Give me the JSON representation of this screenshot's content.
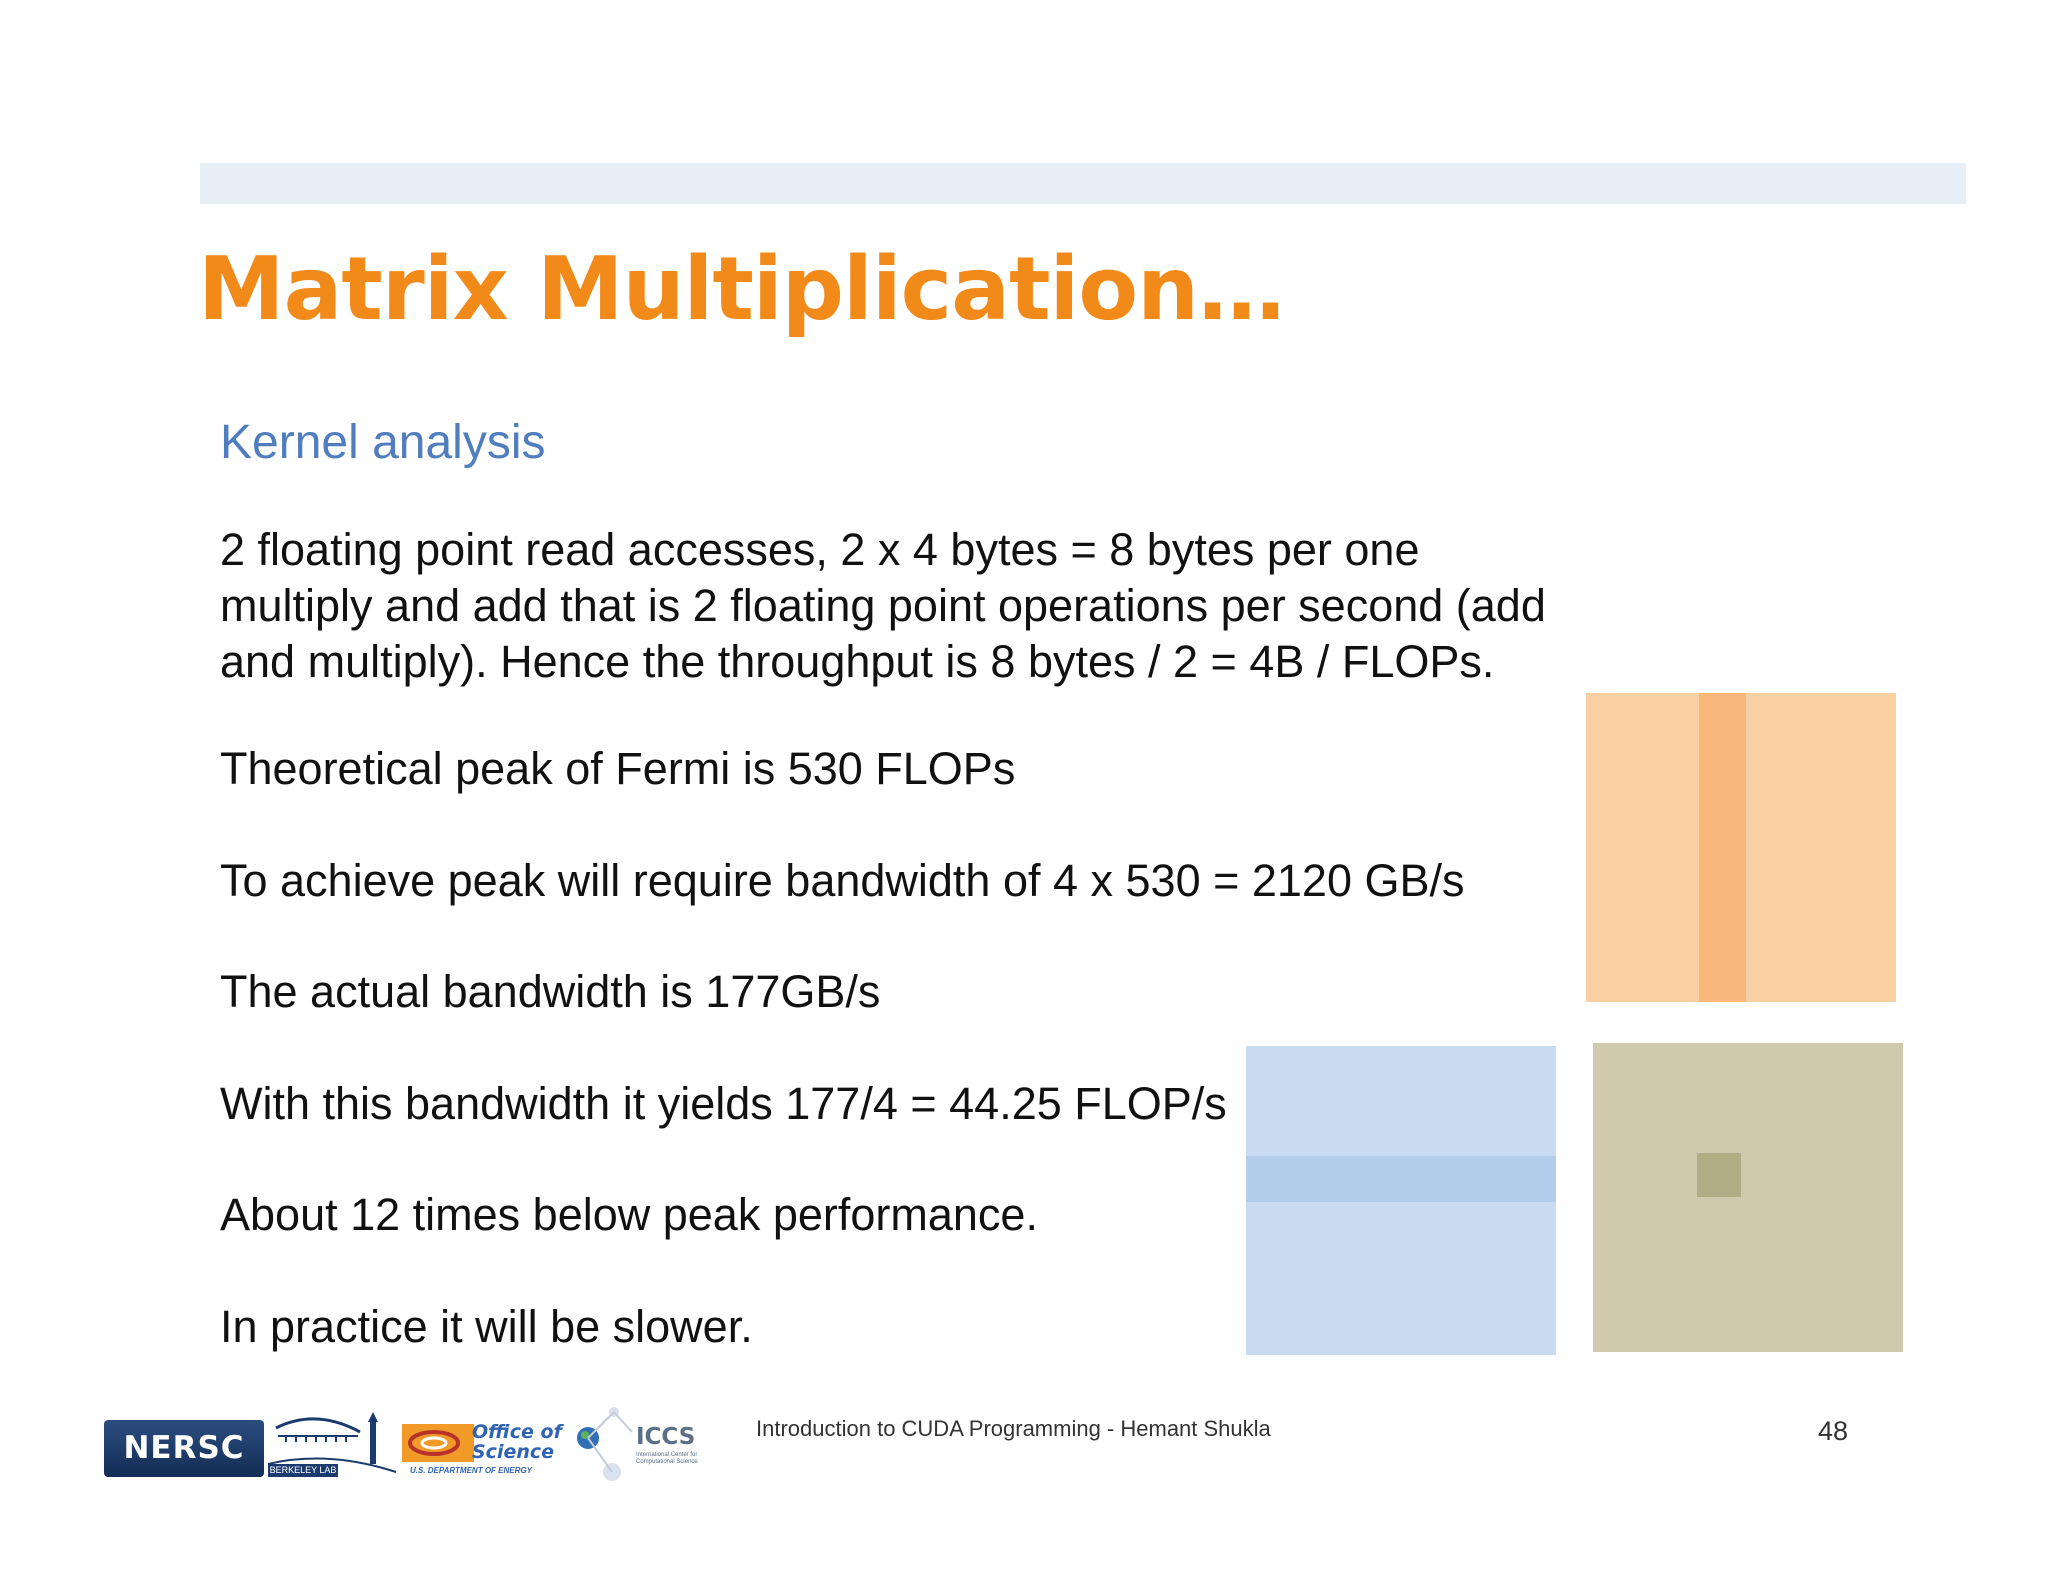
{
  "slide": {
    "title": "Matrix Multiplication…",
    "subtitle": "Kernel analysis",
    "paragraphs": [
      [
        "2 floating point read accesses, 2 x 4 bytes = 8 bytes per one",
        "multiply and add that is 2 floating point operations per second (add",
        "and multiply). Hence the throughput is 8 bytes / 2 = 4B / FLOPs."
      ],
      [
        "Theoretical peak of Fermi is 530 FLOPs"
      ],
      [
        "To achieve peak will require bandwidth of 4 x 530 = 2120 GB/s"
      ],
      [
        "The actual bandwidth is 177GB/s"
      ],
      [
        "With this bandwidth it yields 177/4 = 44.25 FLOP/s"
      ],
      [
        "About 12 times below peak performance."
      ],
      [
        "In practice it will be slower."
      ]
    ]
  },
  "footer": {
    "text": "Introduction to CUDA Programming - Hemant Shukla",
    "page_number": "48",
    "logos": {
      "nersc": "NERSC",
      "berkeley": "BERKELEY LAB",
      "doe_line1": "Office of",
      "doe_line2": "Science",
      "doe_dept": "U.S. DEPARTMENT OF ENERGY",
      "iccs": "ICCS",
      "iccs_sub": "International Center for Computational Science"
    }
  },
  "colors": {
    "title": "#f28a1a",
    "subtitle": "#4f7dbd",
    "matrix_b": "#f9cfa4",
    "matrix_b_column": "#f8b87c",
    "matrix_a": "#c9dbf0",
    "matrix_a_row": "#b2cdec",
    "matrix_c": "#d0c9ad",
    "matrix_c_cell": "#b3ad86"
  }
}
